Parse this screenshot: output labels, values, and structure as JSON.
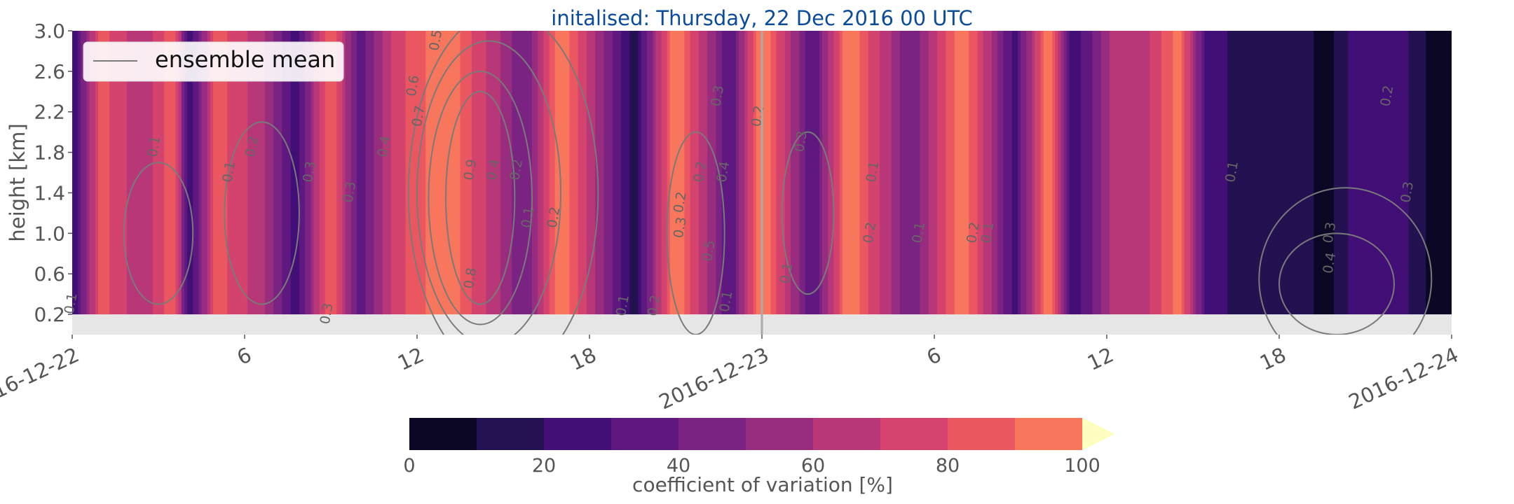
{
  "chart_data": {
    "type": "heatmap",
    "title": "initalised: Thursday, 22 Dec 2016 00 UTC",
    "title_color": "#0a4b9e",
    "ylabel": "height [km]",
    "xlabel": "",
    "x_hours": [
      0,
      3,
      6,
      9,
      12,
      15,
      18,
      21,
      24,
      27,
      30,
      33,
      36,
      39,
      42,
      45,
      48
    ],
    "xlim_hours": [
      0,
      48
    ],
    "ylim": [
      0,
      3.0
    ],
    "data_ylim": [
      0.2,
      3.0
    ],
    "y_ticks": [
      "0.2",
      "0.6",
      "1.0",
      "1.4",
      "1.8",
      "2.2",
      "2.6",
      "3.0"
    ],
    "y_tick_values": [
      0.2,
      0.6,
      1.0,
      1.4,
      1.8,
      2.2,
      2.6,
      3.0
    ],
    "x_ticks": [
      {
        "hour": 0,
        "label": "2016-12-22"
      },
      {
        "hour": 6,
        "label": "6"
      },
      {
        "hour": 12,
        "label": "12"
      },
      {
        "hour": 18,
        "label": "18"
      },
      {
        "hour": 24,
        "label": "2016-12-23"
      },
      {
        "hour": 30,
        "label": "6"
      },
      {
        "hour": 36,
        "label": "12"
      },
      {
        "hour": 42,
        "label": "18"
      },
      {
        "hour": 48,
        "label": "2016-12-24"
      }
    ],
    "vertical_line_hour": 24,
    "cov_column_profile": [
      {
        "hour": 0.0,
        "value": 20
      },
      {
        "hour": 1.0,
        "value": 85
      },
      {
        "hour": 2.5,
        "value": 60
      },
      {
        "hour": 3.5,
        "value": 90
      },
      {
        "hour": 4.1,
        "value": 20
      },
      {
        "hour": 5.0,
        "value": 85
      },
      {
        "hour": 6.5,
        "value": 65
      },
      {
        "hour": 7.8,
        "value": 25
      },
      {
        "hour": 9.0,
        "value": 90
      },
      {
        "hour": 10.0,
        "value": 35
      },
      {
        "hour": 11.3,
        "value": 75
      },
      {
        "hour": 13.0,
        "value": 100
      },
      {
        "hour": 15.8,
        "value": 40
      },
      {
        "hour": 17.0,
        "value": 100
      },
      {
        "hour": 19.6,
        "value": 15
      },
      {
        "hour": 21.0,
        "value": 100
      },
      {
        "hour": 22.9,
        "value": 30
      },
      {
        "hour": 24.0,
        "value": 100
      },
      {
        "hour": 25.8,
        "value": 30
      },
      {
        "hour": 27.0,
        "value": 100
      },
      {
        "hour": 29.2,
        "value": 40
      },
      {
        "hour": 31.0,
        "value": 100
      },
      {
        "hour": 32.8,
        "value": 25
      },
      {
        "hour": 34.0,
        "value": 100
      },
      {
        "hour": 34.8,
        "value": 20
      },
      {
        "hour": 36.3,
        "value": 65
      },
      {
        "hour": 37.5,
        "value": 70
      },
      {
        "hour": 38.5,
        "value": 95
      },
      {
        "hour": 39.5,
        "value": 25
      },
      {
        "hour": 41.0,
        "value": 15
      },
      {
        "hour": 42.5,
        "value": 20
      },
      {
        "hour": 43.6,
        "value": 5
      },
      {
        "hour": 45.0,
        "value": 30
      },
      {
        "hour": 46.5,
        "value": 20
      },
      {
        "hour": 47.4,
        "value": 5
      },
      {
        "hour": 48.0,
        "value": 10
      }
    ],
    "colorbar": {
      "label": "coefficient of variation [%]",
      "levels": [
        0,
        10,
        20,
        30,
        40,
        50,
        60,
        70,
        80,
        90,
        100
      ],
      "tick_labels": [
        "0",
        "20",
        "40",
        "60",
        "80",
        "100"
      ],
      "tick_values": [
        0,
        20,
        40,
        60,
        80,
        100
      ],
      "colors": [
        "#0b0724",
        "#231151",
        "#410f75",
        "#5f187f",
        "#7b2382",
        "#982d80",
        "#b73779",
        "#d3436e",
        "#eb5760",
        "#f8765c",
        "#fd9969",
        "#febb81",
        "#fddea0",
        "#fcfdbf"
      ],
      "extend": "max"
    },
    "contours": {
      "legend": "ensemble mean",
      "color": "#7a7a7a",
      "labels": [
        {
          "hour": 12.8,
          "y": 2.9,
          "text": "0.5"
        },
        {
          "hour": 12.0,
          "y": 2.45,
          "text": "0.6"
        },
        {
          "hour": 12.2,
          "y": 2.15,
          "text": "0.7"
        },
        {
          "hour": 14.0,
          "y": 1.62,
          "text": "0.9"
        },
        {
          "hour": 14.8,
          "y": 1.62,
          "text": "0.4"
        },
        {
          "hour": 15.6,
          "y": 1.62,
          "text": "0.2"
        },
        {
          "hour": 16.0,
          "y": 1.15,
          "text": "0.1"
        },
        {
          "hour": 16.9,
          "y": 1.15,
          "text": "0.2"
        },
        {
          "hour": 14.0,
          "y": 0.55,
          "text": "0.8"
        },
        {
          "hour": 19.3,
          "y": 0.28,
          "text": "0.1"
        },
        {
          "hour": 20.4,
          "y": 0.28,
          "text": "0.2"
        },
        {
          "hour": 21.3,
          "y": 1.05,
          "text": "0.3"
        },
        {
          "hour": 21.3,
          "y": 1.3,
          "text": "0.2"
        },
        {
          "hour": 22.0,
          "y": 1.6,
          "text": "0.2"
        },
        {
          "hour": 22.6,
          "y": 2.35,
          "text": "0.3"
        },
        {
          "hour": 22.8,
          "y": 1.6,
          "text": "0.4"
        },
        {
          "hour": 22.3,
          "y": 0.82,
          "text": "0.5"
        },
        {
          "hour": 22.9,
          "y": 0.32,
          "text": "0.1"
        },
        {
          "hour": 24.0,
          "y": 2.15,
          "text": "0.2"
        },
        {
          "hour": 25.0,
          "y": 0.6,
          "text": "0.1"
        },
        {
          "hour": 25.5,
          "y": 1.9,
          "text": "0.3"
        },
        {
          "hour": 27.9,
          "y": 1.0,
          "text": "0.2"
        },
        {
          "hour": 28.0,
          "y": 1.6,
          "text": "0.1"
        },
        {
          "hour": 29.6,
          "y": 1.0,
          "text": "0.1"
        },
        {
          "hour": 31.5,
          "y": 1.0,
          "text": "0.2"
        },
        {
          "hour": 32.0,
          "y": 1.0,
          "text": "0.1"
        },
        {
          "hour": 3.0,
          "y": 1.85,
          "text": "0.1"
        },
        {
          "hour": 5.6,
          "y": 1.6,
          "text": "0.1"
        },
        {
          "hour": 6.4,
          "y": 1.85,
          "text": "0.2"
        },
        {
          "hour": 8.4,
          "y": 1.6,
          "text": "0.3"
        },
        {
          "hour": 9.8,
          "y": 1.4,
          "text": "0.3"
        },
        {
          "hour": 11.0,
          "y": 1.85,
          "text": "0.4"
        },
        {
          "hour": 9.0,
          "y": 0.2,
          "text": "0.3"
        },
        {
          "hour": 0.1,
          "y": 0.3,
          "text": "0.1"
        },
        {
          "hour": 40.5,
          "y": 1.6,
          "text": "0.1"
        },
        {
          "hour": 43.9,
          "y": 1.0,
          "text": "0.3"
        },
        {
          "hour": 43.9,
          "y": 0.7,
          "text": "0.4"
        },
        {
          "hour": 45.9,
          "y": 2.35,
          "text": "0.2"
        },
        {
          "hour": 46.6,
          "y": 1.4,
          "text": "0.3"
        }
      ]
    }
  }
}
